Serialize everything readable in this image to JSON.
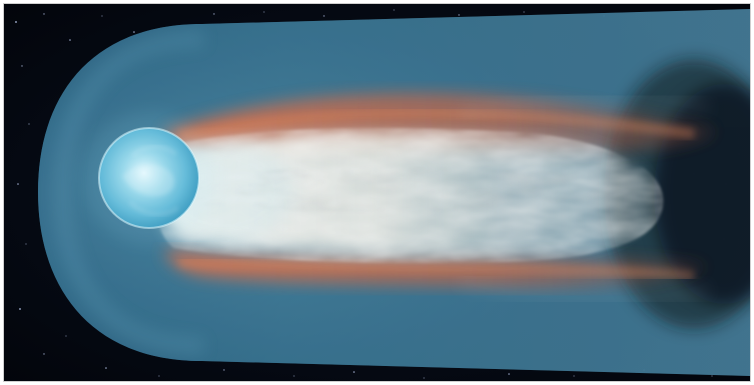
{
  "image": {
    "subject": "comet-with-plasma-tail",
    "colors": {
      "space": "#05070d",
      "halo": "#3f7f9e",
      "halo_edge": "#5a9bb8",
      "nucleus": "#79c8e3",
      "core_glow": "#f2f1ea",
      "dust_tail": "#d86d45",
      "mist": "#b9c7c8"
    }
  }
}
